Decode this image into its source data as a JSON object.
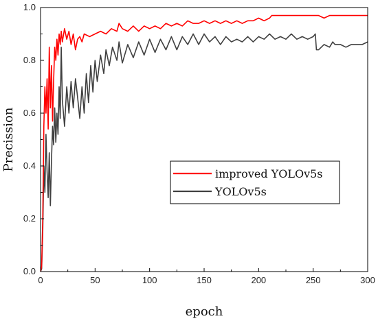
{
  "chart_data": {
    "type": "line",
    "title": "",
    "xlabel": "epoch",
    "ylabel": "Precission",
    "xlim": [
      0,
      300
    ],
    "ylim": [
      0.0,
      1.0
    ],
    "x_ticks": [
      "0",
      "50",
      "100",
      "150",
      "200",
      "250",
      "300"
    ],
    "y_ticks": [
      "0.0",
      "0.2",
      "0.4",
      "0.6",
      "0.8",
      "1.0"
    ],
    "grid": false,
    "legend_position": "center-right",
    "series": [
      {
        "name": "improved YOLOv5s",
        "color": "#ff0000",
        "points": [
          [
            0,
            0.0
          ],
          [
            1,
            0.02
          ],
          [
            2,
            0.2
          ],
          [
            3,
            0.55
          ],
          [
            4,
            0.7
          ],
          [
            5,
            0.6
          ],
          [
            6,
            0.73
          ],
          [
            7,
            0.54
          ],
          [
            8,
            0.85
          ],
          [
            9,
            0.62
          ],
          [
            10,
            0.78
          ],
          [
            11,
            0.57
          ],
          [
            12,
            0.72
          ],
          [
            13,
            0.85
          ],
          [
            14,
            0.8
          ],
          [
            15,
            0.88
          ],
          [
            16,
            0.82
          ],
          [
            17,
            0.9
          ],
          [
            18,
            0.86
          ],
          [
            19,
            0.91
          ],
          [
            20,
            0.87
          ],
          [
            22,
            0.92
          ],
          [
            24,
            0.88
          ],
          [
            26,
            0.91
          ],
          [
            28,
            0.86
          ],
          [
            30,
            0.9
          ],
          [
            32,
            0.84
          ],
          [
            34,
            0.88
          ],
          [
            36,
            0.89
          ],
          [
            38,
            0.87
          ],
          [
            40,
            0.9
          ],
          [
            45,
            0.89
          ],
          [
            50,
            0.9
          ],
          [
            55,
            0.91
          ],
          [
            60,
            0.9
          ],
          [
            65,
            0.92
          ],
          [
            70,
            0.91
          ],
          [
            72,
            0.94
          ],
          [
            75,
            0.92
          ],
          [
            80,
            0.91
          ],
          [
            85,
            0.93
          ],
          [
            90,
            0.91
          ],
          [
            95,
            0.93
          ],
          [
            100,
            0.92
          ],
          [
            105,
            0.93
          ],
          [
            110,
            0.92
          ],
          [
            115,
            0.94
          ],
          [
            120,
            0.93
          ],
          [
            125,
            0.94
          ],
          [
            130,
            0.93
          ],
          [
            135,
            0.95
          ],
          [
            140,
            0.94
          ],
          [
            145,
            0.94
          ],
          [
            150,
            0.95
          ],
          [
            155,
            0.94
          ],
          [
            160,
            0.95
          ],
          [
            165,
            0.94
          ],
          [
            170,
            0.95
          ],
          [
            175,
            0.94
          ],
          [
            180,
            0.95
          ],
          [
            185,
            0.94
          ],
          [
            190,
            0.95
          ],
          [
            195,
            0.95
          ],
          [
            200,
            0.96
          ],
          [
            205,
            0.95
          ],
          [
            210,
            0.96
          ],
          [
            212,
            0.97
          ],
          [
            220,
            0.97
          ],
          [
            230,
            0.97
          ],
          [
            240,
            0.97
          ],
          [
            250,
            0.97
          ],
          [
            255,
            0.97
          ],
          [
            260,
            0.96
          ],
          [
            265,
            0.97
          ],
          [
            270,
            0.97
          ],
          [
            280,
            0.97
          ],
          [
            290,
            0.97
          ],
          [
            300,
            0.97
          ]
        ]
      },
      {
        "name": "YOLOv5s",
        "color": "#404040",
        "points": [
          [
            0,
            0.0
          ],
          [
            1,
            0.01
          ],
          [
            2,
            0.15
          ],
          [
            3,
            0.4
          ],
          [
            4,
            0.3
          ],
          [
            5,
            0.52
          ],
          [
            6,
            0.38
          ],
          [
            7,
            0.28
          ],
          [
            8,
            0.45
          ],
          [
            9,
            0.25
          ],
          [
            10,
            0.42
          ],
          [
            11,
            0.55
          ],
          [
            12,
            0.48
          ],
          [
            13,
            0.62
          ],
          [
            14,
            0.49
          ],
          [
            15,
            0.6
          ],
          [
            16,
            0.52
          ],
          [
            17,
            0.7
          ],
          [
            18,
            0.58
          ],
          [
            19,
            0.85
          ],
          [
            20,
            0.65
          ],
          [
            22,
            0.55
          ],
          [
            24,
            0.7
          ],
          [
            26,
            0.6
          ],
          [
            28,
            0.72
          ],
          [
            30,
            0.62
          ],
          [
            32,
            0.73
          ],
          [
            34,
            0.66
          ],
          [
            36,
            0.58
          ],
          [
            38,
            0.7
          ],
          [
            40,
            0.6
          ],
          [
            42,
            0.75
          ],
          [
            44,
            0.64
          ],
          [
            46,
            0.78
          ],
          [
            48,
            0.68
          ],
          [
            50,
            0.8
          ],
          [
            52,
            0.72
          ],
          [
            55,
            0.82
          ],
          [
            58,
            0.75
          ],
          [
            60,
            0.84
          ],
          [
            63,
            0.78
          ],
          [
            66,
            0.85
          ],
          [
            70,
            0.8
          ],
          [
            72,
            0.87
          ],
          [
            75,
            0.79
          ],
          [
            80,
            0.86
          ],
          [
            85,
            0.81
          ],
          [
            90,
            0.87
          ],
          [
            95,
            0.82
          ],
          [
            100,
            0.88
          ],
          [
            105,
            0.83
          ],
          [
            110,
            0.88
          ],
          [
            115,
            0.84
          ],
          [
            120,
            0.89
          ],
          [
            125,
            0.84
          ],
          [
            130,
            0.89
          ],
          [
            135,
            0.86
          ],
          [
            140,
            0.9
          ],
          [
            145,
            0.86
          ],
          [
            150,
            0.9
          ],
          [
            155,
            0.87
          ],
          [
            160,
            0.89
          ],
          [
            165,
            0.86
          ],
          [
            170,
            0.89
          ],
          [
            175,
            0.87
          ],
          [
            180,
            0.88
          ],
          [
            185,
            0.87
          ],
          [
            190,
            0.89
          ],
          [
            195,
            0.87
          ],
          [
            200,
            0.89
          ],
          [
            205,
            0.88
          ],
          [
            210,
            0.9
          ],
          [
            215,
            0.88
          ],
          [
            220,
            0.89
          ],
          [
            225,
            0.88
          ],
          [
            230,
            0.9
          ],
          [
            235,
            0.88
          ],
          [
            240,
            0.89
          ],
          [
            245,
            0.88
          ],
          [
            250,
            0.89
          ],
          [
            252,
            0.9
          ],
          [
            253,
            0.84
          ],
          [
            255,
            0.84
          ],
          [
            260,
            0.86
          ],
          [
            265,
            0.85
          ],
          [
            268,
            0.87
          ],
          [
            270,
            0.86
          ],
          [
            275,
            0.86
          ],
          [
            280,
            0.85
          ],
          [
            285,
            0.86
          ],
          [
            290,
            0.86
          ],
          [
            295,
            0.86
          ],
          [
            300,
            0.87
          ]
        ]
      }
    ]
  }
}
